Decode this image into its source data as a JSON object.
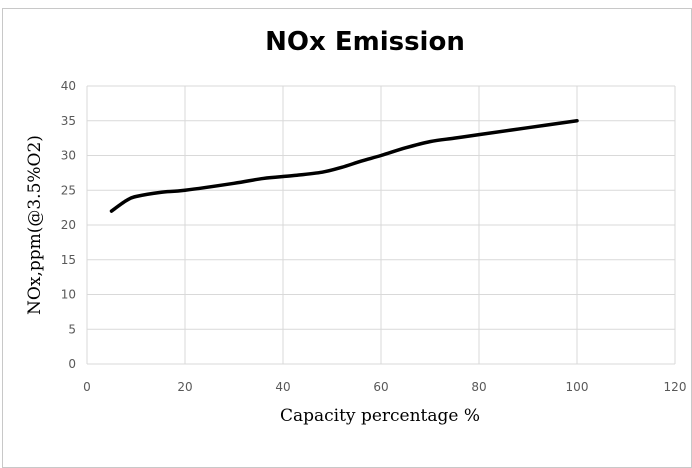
{
  "chart_data": {
    "type": "line",
    "title": "NOx Emission",
    "xlabel": "Capacity percentage %",
    "ylabel": "NOx,ppm(@3.5%O2)",
    "xlim": [
      0,
      120
    ],
    "ylim": [
      0,
      40
    ],
    "x_ticks": [
      "0",
      "20",
      "40",
      "60",
      "80",
      "100",
      "120"
    ],
    "y_ticks": [
      "0",
      "5",
      "10",
      "15",
      "20",
      "25",
      "30",
      "35",
      "40"
    ],
    "grid": true,
    "legend": "none",
    "series": [
      {
        "color": "#000000",
        "x": [
          5,
          8,
          10,
          15,
          20,
          30,
          36,
          42,
          48,
          52,
          56,
          60,
          65,
          70,
          75,
          80,
          90,
          100
        ],
        "y": [
          22,
          23.5,
          24.1,
          24.7,
          25,
          26,
          26.7,
          27.1,
          27.6,
          28.3,
          29.2,
          30,
          31.1,
          32,
          32.5,
          33,
          34,
          35
        ]
      }
    ]
  }
}
